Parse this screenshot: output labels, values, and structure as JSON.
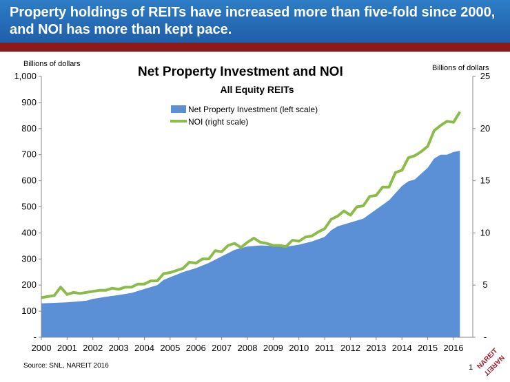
{
  "banner": {
    "title": "Property holdings of REITs have increased more than five-fold since 2000, and NOI has more than kept pace."
  },
  "page_number": "1",
  "logo": {
    "text": "NAREIT",
    "colour": "#a01c2c"
  },
  "colors": {
    "banner": "#2e7dc6",
    "rule": "#8b1a1a",
    "area": "#5b8fd6",
    "line": "#8dbb4a"
  },
  "chart_data": {
    "type": "area",
    "title": "Net Property Investment and NOI",
    "subtitle": "All Equity REITs",
    "left_unit": "Billions of dollars",
    "right_unit": "Billions of dollars",
    "source": "Source: SNL, NAREIT 2016",
    "x_range": [
      2000,
      2016.75
    ],
    "y_left_range": [
      0,
      1000
    ],
    "y_right_range": [
      0,
      25
    ],
    "x_ticks": [
      "2000",
      "2001",
      "2002",
      "2003",
      "2004",
      "2005",
      "2006",
      "2007",
      "2008",
      "2009",
      "2010",
      "2011",
      "2012",
      "2013",
      "2014",
      "2015",
      "2016"
    ],
    "y_left_ticks": [
      "-",
      "100",
      "200",
      "300",
      "400",
      "500",
      "600",
      "700",
      "800",
      "900",
      "1,000"
    ],
    "y_right_ticks": [
      "-",
      "5",
      "10",
      "15",
      "20",
      "25"
    ],
    "legend": {
      "position": "top-center"
    },
    "series": [
      {
        "name": "Net Property Investment (left scale)",
        "type": "area",
        "axis": "left",
        "points": [
          [
            2000.0,
            130
          ],
          [
            2000.5,
            132
          ],
          [
            2001.0,
            134
          ],
          [
            2001.5,
            138
          ],
          [
            2001.75,
            140
          ],
          [
            2002.0,
            147
          ],
          [
            2002.5,
            155
          ],
          [
            2003.0,
            162
          ],
          [
            2003.5,
            170
          ],
          [
            2004.0,
            185
          ],
          [
            2004.5,
            200
          ],
          [
            2004.75,
            220
          ],
          [
            2005.0,
            230
          ],
          [
            2005.5,
            250
          ],
          [
            2006.0,
            265
          ],
          [
            2006.5,
            285
          ],
          [
            2007.0,
            310
          ],
          [
            2007.5,
            335
          ],
          [
            2008.0,
            348
          ],
          [
            2008.5,
            352
          ],
          [
            2009.0,
            350
          ],
          [
            2009.5,
            347
          ],
          [
            2010.0,
            355
          ],
          [
            2010.5,
            367
          ],
          [
            2011.0,
            385
          ],
          [
            2011.25,
            410
          ],
          [
            2011.5,
            425
          ],
          [
            2012.0,
            440
          ],
          [
            2012.5,
            455
          ],
          [
            2013.0,
            490
          ],
          [
            2013.5,
            525
          ],
          [
            2014.0,
            580
          ],
          [
            2014.25,
            598
          ],
          [
            2014.5,
            605
          ],
          [
            2015.0,
            650
          ],
          [
            2015.25,
            685
          ],
          [
            2015.5,
            700
          ],
          [
            2015.75,
            700
          ],
          [
            2016.0,
            710
          ],
          [
            2016.25,
            715
          ]
        ]
      },
      {
        "name": "NOI (right scale)",
        "type": "line",
        "axis": "right",
        "points": [
          [
            2000.0,
            3.8
          ],
          [
            2000.25,
            3.9
          ],
          [
            2000.5,
            4.0
          ],
          [
            2000.75,
            4.8
          ],
          [
            2001.0,
            4.1
          ],
          [
            2001.25,
            4.3
          ],
          [
            2001.5,
            4.2
          ],
          [
            2001.75,
            4.3
          ],
          [
            2002.0,
            4.4
          ],
          [
            2002.25,
            4.5
          ],
          [
            2002.5,
            4.5
          ],
          [
            2002.75,
            4.7
          ],
          [
            2003.0,
            4.6
          ],
          [
            2003.25,
            4.8
          ],
          [
            2003.5,
            4.8
          ],
          [
            2003.75,
            5.1
          ],
          [
            2004.0,
            5.1
          ],
          [
            2004.25,
            5.4
          ],
          [
            2004.5,
            5.4
          ],
          [
            2004.75,
            6.1
          ],
          [
            2005.0,
            6.2
          ],
          [
            2005.25,
            6.4
          ],
          [
            2005.5,
            6.6
          ],
          [
            2005.75,
            7.2
          ],
          [
            2006.0,
            7.1
          ],
          [
            2006.25,
            7.5
          ],
          [
            2006.5,
            7.5
          ],
          [
            2006.75,
            8.3
          ],
          [
            2007.0,
            8.2
          ],
          [
            2007.25,
            8.8
          ],
          [
            2007.5,
            9.0
          ],
          [
            2007.75,
            8.6
          ],
          [
            2008.0,
            9.1
          ],
          [
            2008.25,
            9.5
          ],
          [
            2008.5,
            9.1
          ],
          [
            2008.75,
            9.0
          ],
          [
            2009.0,
            8.8
          ],
          [
            2009.25,
            8.8
          ],
          [
            2009.5,
            8.7
          ],
          [
            2009.75,
            9.3
          ],
          [
            2010.0,
            9.2
          ],
          [
            2010.25,
            9.6
          ],
          [
            2010.5,
            9.7
          ],
          [
            2010.75,
            10.1
          ],
          [
            2011.0,
            10.4
          ],
          [
            2011.25,
            11.3
          ],
          [
            2011.5,
            11.6
          ],
          [
            2011.75,
            12.1
          ],
          [
            2012.0,
            11.7
          ],
          [
            2012.25,
            12.5
          ],
          [
            2012.5,
            12.6
          ],
          [
            2012.75,
            13.5
          ],
          [
            2013.0,
            13.6
          ],
          [
            2013.25,
            14.4
          ],
          [
            2013.5,
            14.4
          ],
          [
            2013.75,
            15.8
          ],
          [
            2014.0,
            16.0
          ],
          [
            2014.25,
            17.2
          ],
          [
            2014.5,
            17.4
          ],
          [
            2014.75,
            17.8
          ],
          [
            2015.0,
            18.3
          ],
          [
            2015.25,
            19.8
          ],
          [
            2015.5,
            20.3
          ],
          [
            2015.75,
            20.7
          ],
          [
            2016.0,
            20.6
          ],
          [
            2016.25,
            21.6
          ]
        ]
      }
    ]
  }
}
